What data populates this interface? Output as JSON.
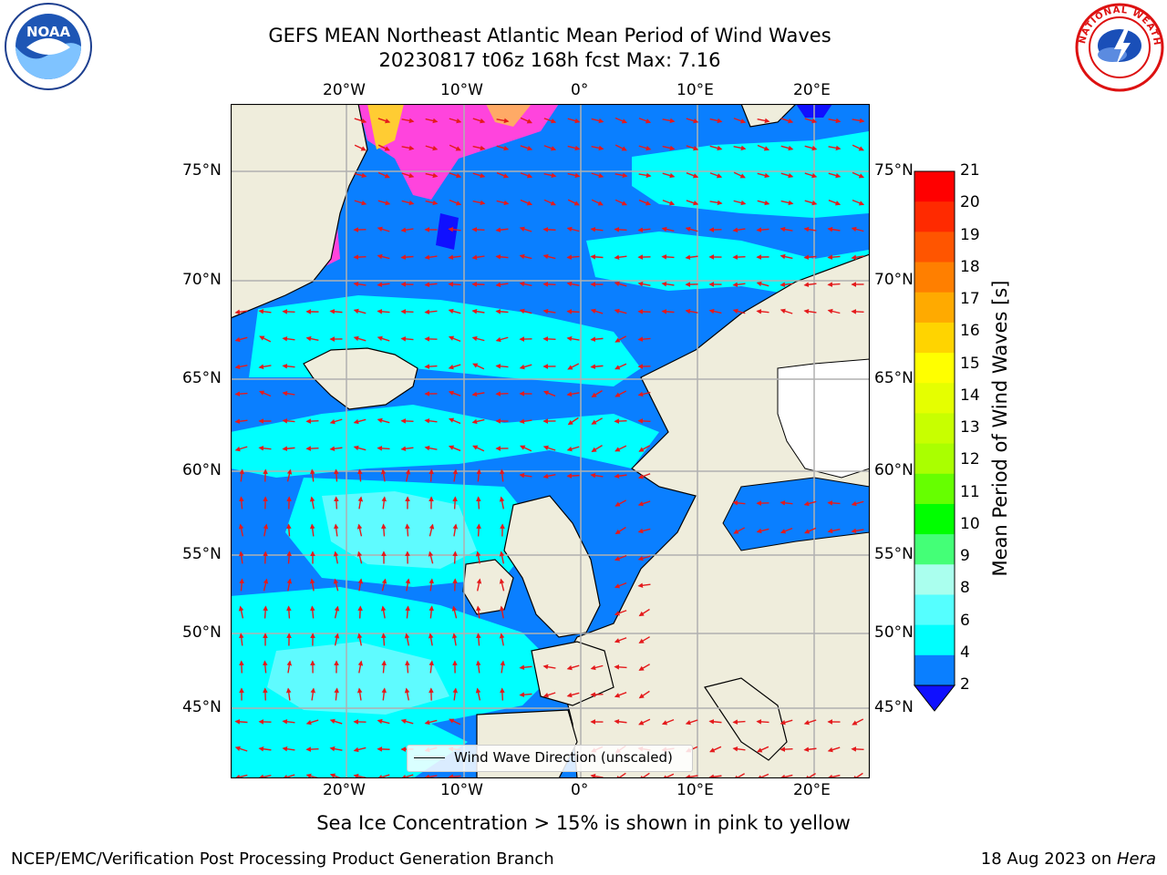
{
  "header": {
    "title_line1": "GEFS MEAN Northeast Atlantic Mean Period of Wind Waves",
    "title_line2": "20230817 t06z 168h fcst   Max: 7.16"
  },
  "logos": {
    "noaa_text": "NOAA",
    "nws_text": "NATIONAL WEATHER SERVICE"
  },
  "map": {
    "lon_labels": [
      "20°W",
      "10°W",
      "0°",
      "10°E",
      "20°E"
    ],
    "lat_labels": [
      "75°N",
      "70°N",
      "65°N",
      "60°N",
      "55°N",
      "50°N",
      "45°N"
    ],
    "legend_label": "Wind Wave Direction (unscaled)",
    "colors": {
      "land": "#efeddc",
      "band_2_4": "#0a7fff",
      "band_4_6": "#00ffff",
      "band_6_8": "#3fffff",
      "below_2": "#1a1aff",
      "arrow": "#e41a1c",
      "grid": "#b0b0b0",
      "ice": "#ff44dd"
    }
  },
  "colorbar": {
    "label": "Mean Period of Wind Waves [s]",
    "ticks": [
      "21",
      "20",
      "19",
      "18",
      "17",
      "16",
      "15",
      "14",
      "13",
      "12",
      "11",
      "10",
      "9",
      "8",
      "6",
      "4",
      "2"
    ],
    "colors": [
      "#ff0000",
      "#ff2a00",
      "#ff5500",
      "#ff7f00",
      "#ffaa00",
      "#ffd400",
      "#ffff00",
      "#e5ff00",
      "#c8ff00",
      "#aaff00",
      "#66ff00",
      "#00ff00",
      "#44ff77",
      "#aaffee",
      "#55ffff",
      "#00ffff",
      "#0a7fff"
    ],
    "extend_color": "#1010ff"
  },
  "footer": {
    "ice_note": "Sea Ice Concentration > 15% is shown in pink to yellow",
    "credit": "NCEP/EMC/Verification Post Processing Product Generation Branch",
    "date": "18 Aug 2023 on ",
    "machine": "Hera"
  }
}
